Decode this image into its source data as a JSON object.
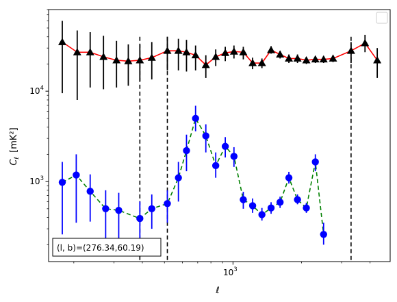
{
  "chart_data": {
    "type": "scatter",
    "x_scale": "log",
    "y_scale": "log",
    "xlim": [
      155,
      4900
    ],
    "ylim": [
      130,
      80000
    ],
    "xlabel": "ℓ",
    "ylabel_main": "C",
    "ylabel_sub": "ℓ",
    "ylabel_unit": "[mK²]",
    "x_ticks": [
      {
        "value": 1000,
        "label": "10",
        "exp": "3"
      }
    ],
    "y_ticks": [
      {
        "value": 1000,
        "label": "10",
        "exp": "3"
      },
      {
        "value": 10000,
        "label": "10",
        "exp": "4"
      }
    ],
    "grid": false,
    "legend": {
      "placement": "top-right",
      "entries": []
    },
    "annotation": "(l, b)=(276.34,60.19)",
    "vlines": [
      390,
      515,
      3300
    ],
    "series": [
      {
        "marker": "triangle",
        "line_style": "solid",
        "line_color": "#ff0000",
        "marker_color": "#000000",
        "errorbar_color": "#000000",
        "points": [
          {
            "x": 178,
            "y": 35000,
            "lo": 9500,
            "hi": 60000
          },
          {
            "x": 207,
            "y": 27000,
            "lo": 8000,
            "hi": 47000
          },
          {
            "x": 236,
            "y": 27000,
            "lo": 11000,
            "hi": 45000
          },
          {
            "x": 270,
            "y": 24000,
            "lo": 10500,
            "hi": 41000
          },
          {
            "x": 308,
            "y": 22000,
            "lo": 11000,
            "hi": 36000
          },
          {
            "x": 347,
            "y": 21500,
            "lo": 11500,
            "hi": 33000
          },
          {
            "x": 390,
            "y": 22000,
            "lo": 13000,
            "hi": 33000
          },
          {
            "x": 440,
            "y": 23500,
            "lo": 13500,
            "hi": 35000
          },
          {
            "x": 515,
            "y": 28000,
            "lo": 17000,
            "hi": 40000
          },
          {
            "x": 576,
            "y": 28000,
            "lo": 17000,
            "hi": 38000
          },
          {
            "x": 625,
            "y": 27000,
            "lo": 16500,
            "hi": 37000
          },
          {
            "x": 685,
            "y": 25000,
            "lo": 17000,
            "hi": 32000
          },
          {
            "x": 760,
            "y": 19500,
            "lo": 14000,
            "hi": 25000
          },
          {
            "x": 840,
            "y": 24000,
            "lo": 19000,
            "hi": 29000
          },
          {
            "x": 925,
            "y": 26500,
            "lo": 21500,
            "hi": 31000
          },
          {
            "x": 1010,
            "y": 27500,
            "lo": 23000,
            "hi": 32000
          },
          {
            "x": 1110,
            "y": 27000,
            "lo": 22500,
            "hi": 31000
          },
          {
            "x": 1220,
            "y": 20500,
            "lo": 17500,
            "hi": 23500
          },
          {
            "x": 1340,
            "y": 20500,
            "lo": 18000,
            "hi": 23000
          },
          {
            "x": 1470,
            "y": 28500,
            "lo": 26000,
            "hi": 31500
          },
          {
            "x": 1610,
            "y": 25500,
            "lo": 23000,
            "hi": 28000
          },
          {
            "x": 1760,
            "y": 23000,
            "lo": 20500,
            "hi": 25500
          },
          {
            "x": 1920,
            "y": 23000,
            "lo": 20500,
            "hi": 25500
          },
          {
            "x": 2100,
            "y": 22000,
            "lo": 20000,
            "hi": 24000
          },
          {
            "x": 2300,
            "y": 22500,
            "lo": 20500,
            "hi": 24500
          },
          {
            "x": 2500,
            "y": 22500,
            "lo": 20500,
            "hi": 24500
          },
          {
            "x": 2750,
            "y": 23000,
            "lo": 21000,
            "hi": 25000
          },
          {
            "x": 3300,
            "y": 28000,
            "lo": 20500,
            "hi": 35000
          },
          {
            "x": 3800,
            "y": 34000,
            "lo": 27000,
            "hi": 42000
          },
          {
            "x": 4300,
            "y": 22000,
            "lo": 14000,
            "hi": 30000
          }
        ]
      },
      {
        "marker": "circle",
        "line_style": "dashed",
        "line_color": "#008000",
        "marker_color": "#0000ff",
        "errorbar_color": "#0000ff",
        "points": [
          {
            "x": 178,
            "y": 980,
            "lo": 260,
            "hi": 1650
          },
          {
            "x": 205,
            "y": 1180,
            "lo": 350,
            "hi": 2000
          },
          {
            "x": 236,
            "y": 780,
            "lo": 360,
            "hi": 1200
          },
          {
            "x": 276,
            "y": 500,
            "lo": 220,
            "hi": 800
          },
          {
            "x": 315,
            "y": 480,
            "lo": 220,
            "hi": 750
          },
          {
            "x": 390,
            "y": 390,
            "lo": 200,
            "hi": 600
          },
          {
            "x": 440,
            "y": 500,
            "lo": 300,
            "hi": 720
          },
          {
            "x": 515,
            "y": 570,
            "lo": 350,
            "hi": 800
          },
          {
            "x": 576,
            "y": 1100,
            "lo": 600,
            "hi": 1650
          },
          {
            "x": 625,
            "y": 2200,
            "lo": 1300,
            "hi": 3300
          },
          {
            "x": 685,
            "y": 5000,
            "lo": 3600,
            "hi": 6900
          },
          {
            "x": 760,
            "y": 3200,
            "lo": 2100,
            "hi": 4300
          },
          {
            "x": 840,
            "y": 1500,
            "lo": 1100,
            "hi": 2100
          },
          {
            "x": 925,
            "y": 2450,
            "lo": 1850,
            "hi": 3100
          },
          {
            "x": 1010,
            "y": 1900,
            "lo": 1450,
            "hi": 2400
          },
          {
            "x": 1110,
            "y": 630,
            "lo": 500,
            "hi": 770
          },
          {
            "x": 1220,
            "y": 540,
            "lo": 450,
            "hi": 650
          },
          {
            "x": 1340,
            "y": 430,
            "lo": 370,
            "hi": 510
          },
          {
            "x": 1470,
            "y": 510,
            "lo": 440,
            "hi": 590
          },
          {
            "x": 1610,
            "y": 590,
            "lo": 510,
            "hi": 680
          },
          {
            "x": 1760,
            "y": 1100,
            "lo": 950,
            "hi": 1280
          },
          {
            "x": 1920,
            "y": 630,
            "lo": 560,
            "hi": 720
          },
          {
            "x": 2100,
            "y": 510,
            "lo": 450,
            "hi": 580
          },
          {
            "x": 2300,
            "y": 1650,
            "lo": 1300,
            "hi": 2000
          },
          {
            "x": 2500,
            "y": 260,
            "lo": 200,
            "hi": 350
          }
        ]
      }
    ]
  }
}
